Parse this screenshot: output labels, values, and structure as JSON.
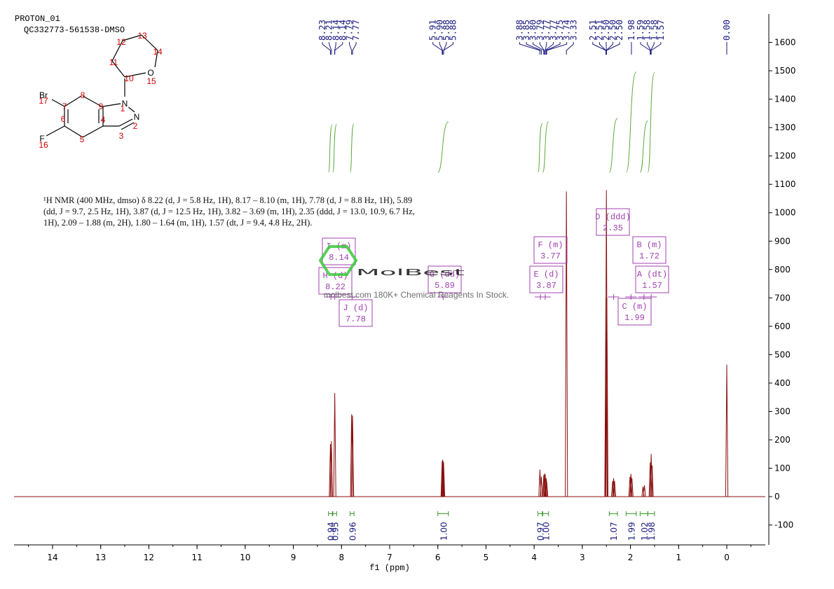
{
  "header": {
    "title": "PROTON_01",
    "sample": "QC332773-561538-DMSO"
  },
  "molecule": {
    "atoms": [
      {
        "number": 1,
        "symbol": "N"
      },
      {
        "number": 2,
        "symbol": "N"
      },
      {
        "number": 3
      },
      {
        "number": 4
      },
      {
        "number": 5
      },
      {
        "number": 6
      },
      {
        "number": 7
      },
      {
        "number": 8
      },
      {
        "number": 9
      },
      {
        "number": 10
      },
      {
        "number": 11
      },
      {
        "number": 12
      },
      {
        "number": 13
      },
      {
        "number": 14
      },
      {
        "number": 15,
        "symbol": "O"
      },
      {
        "number": 16,
        "symbol": "F"
      },
      {
        "number": 17,
        "symbol": "Br"
      }
    ]
  },
  "description": "¹H NMR (400 MHz, dmso) δ 8.22 (d, J = 5.8 Hz, 1H), 8.17 – 8.10 (m, 1H), 7.78 (d, J = 8.8 Hz, 1H), 5.89 (dd, J = 9.7, 2.5 Hz, 1H), 3.87 (d, J = 12.5 Hz, 1H), 3.82 – 3.69 (m, 1H), 2.35 (ddd, J = 13.0, 10.9, 6.7 Hz, 1H), 2.09 – 1.88 (m, 2H), 1.80 – 1.64 (m, 1H), 1.57 (dt, J = 9.4, 4.8 Hz, 2H).",
  "watermark": {
    "brand": "MolBest",
    "tagline": "molbest.com 180K+ Chemical Reagents In Stock."
  },
  "chart_data": {
    "type": "spectrum",
    "x_label": "f1 (ppm)",
    "color": "#8b1010",
    "xlim": [
      14.8,
      -0.8
    ],
    "xticks": [
      14,
      13,
      12,
      11,
      10,
      9,
      8,
      7,
      6,
      5,
      4,
      3,
      2,
      1,
      0
    ],
    "ylim": [
      -170,
      1700
    ],
    "yticks": [
      -100,
      0,
      100,
      200,
      300,
      400,
      500,
      600,
      700,
      800,
      900,
      1000,
      1100,
      1200,
      1300,
      1400,
      1500,
      1600
    ],
    "x": [
      8.23,
      8.21,
      8.14,
      7.79,
      7.77,
      5.91,
      5.9,
      5.89,
      5.88,
      3.88,
      3.85,
      3.8,
      3.79,
      3.77,
      3.75,
      3.74,
      3.33,
      2.51,
      2.5,
      2.49,
      2.37,
      2.35,
      2.33,
      2.01,
      1.99,
      1.97,
      1.74,
      1.71,
      1.59,
      1.57,
      1.55,
      0.0
    ],
    "values": [
      185,
      195,
      365,
      290,
      285,
      125,
      130,
      125,
      120,
      95,
      70,
      75,
      80,
      80,
      65,
      55,
      1075,
      700,
      1080,
      700,
      55,
      65,
      55,
      70,
      80,
      65,
      35,
      40,
      120,
      150,
      110,
      465
    ],
    "peak_labels": [
      {
        "value": 8.23,
        "label": "8.23"
      },
      {
        "value": 8.21,
        "label": "8.21"
      },
      {
        "value": 8.14,
        "label": "8.14"
      },
      {
        "value": 8.14,
        "label": "8.14"
      },
      {
        "value": 7.79,
        "label": "7.79"
      },
      {
        "value": 7.77,
        "label": "7.77"
      },
      {
        "value": 5.91,
        "label": "5.91"
      },
      {
        "value": 5.9,
        "label": "5.90"
      },
      {
        "value": 5.88,
        "label": "5.88"
      },
      {
        "value": 5.88,
        "label": "5.88"
      },
      {
        "value": 3.88,
        "label": "3.88"
      },
      {
        "value": 3.85,
        "label": "3.85"
      },
      {
        "value": 3.8,
        "label": "3.80"
      },
      {
        "value": 3.79,
        "label": "3.79"
      },
      {
        "value": 3.77,
        "label": "3.77"
      },
      {
        "value": 3.77,
        "label": "3.77"
      },
      {
        "value": 3.75,
        "label": "3.75"
      },
      {
        "value": 3.74,
        "label": "3.74"
      },
      {
        "value": 3.33,
        "label": "3.33"
      },
      {
        "value": 2.51,
        "label": "2.51"
      },
      {
        "value": 2.51,
        "label": "2.51"
      },
      {
        "value": 2.5,
        "label": "2.50"
      },
      {
        "value": 2.5,
        "label": "2.50"
      },
      {
        "value": 2.5,
        "label": "2.50"
      },
      {
        "value": 1.98,
        "label": "1.98"
      },
      {
        "value": 1.59,
        "label": "1.59"
      },
      {
        "value": 1.58,
        "label": "1.58"
      },
      {
        "value": 1.58,
        "label": "1.58"
      },
      {
        "value": 1.57,
        "label": "1.57"
      },
      {
        "value": 0.0,
        "label": "0.00"
      }
    ],
    "integrals": [
      {
        "from": 8.27,
        "to": 8.19,
        "value": 0.94
      },
      {
        "from": 8.18,
        "to": 8.1,
        "value": 0.95
      },
      {
        "from": 7.82,
        "to": 7.74,
        "value": 0.96
      },
      {
        "from": 6.0,
        "to": 5.78,
        "value": 1,
        "label": "1.00"
      },
      {
        "from": 3.92,
        "to": 3.83,
        "value": 0.97
      },
      {
        "from": 3.82,
        "to": 3.7,
        "value": 1,
        "label": "1.00"
      },
      {
        "from": 2.44,
        "to": 2.27,
        "value": 1.07
      },
      {
        "from": 2.09,
        "to": 1.88,
        "value": 1.99
      },
      {
        "from": 1.8,
        "to": 1.64,
        "value": 1.02
      },
      {
        "from": 1.64,
        "to": 1.5,
        "value": 1.98
      }
    ],
    "multiplets": [
      {
        "label": "I (m)",
        "shift": 8.14
      },
      {
        "label": "H (d)",
        "shift": 8.22
      },
      {
        "label": "J (d)",
        "shift": 7.78
      },
      {
        "label": "G (dd)",
        "shift": 5.89
      },
      {
        "label": "F (m)",
        "shift": 3.77
      },
      {
        "label": "E (d)",
        "shift": 3.87
      },
      {
        "label": "D (ddd)",
        "shift": 2.35
      },
      {
        "label": "B (m)",
        "shift": 1.72
      },
      {
        "label": "A (dt)",
        "shift": 1.57
      },
      {
        "label": "C (m)",
        "shift": 1.99
      }
    ]
  }
}
